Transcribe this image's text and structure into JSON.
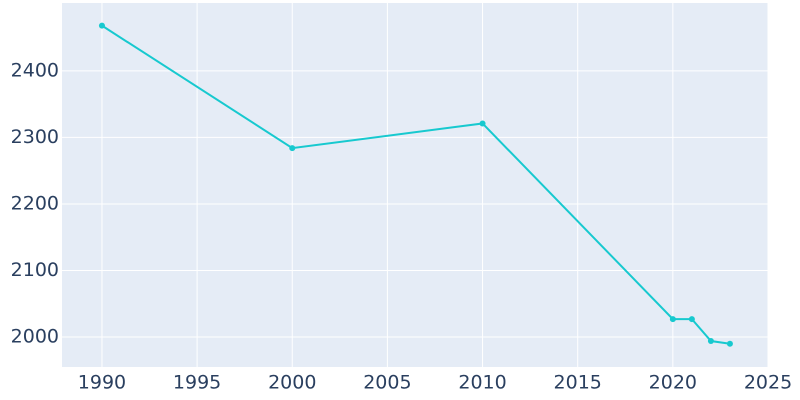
{
  "chart_data": {
    "type": "line",
    "x": [
      1990,
      2000,
      2010,
      2020,
      2021,
      2022,
      2023
    ],
    "series": [
      {
        "color": "#17c9cf",
        "values": [
          2468,
          2284,
          2321,
          2027,
          2027,
          1994,
          1990
        ]
      }
    ],
    "xlim": [
      1987.9,
      2025
    ],
    "ylim": [
      1955,
      2502
    ],
    "xticks": [
      1990,
      1995,
      2000,
      2005,
      2010,
      2015,
      2020,
      2025
    ],
    "yticks": [
      2000,
      2100,
      2200,
      2300,
      2400
    ],
    "grid": true,
    "background": "#e5ecf6"
  }
}
